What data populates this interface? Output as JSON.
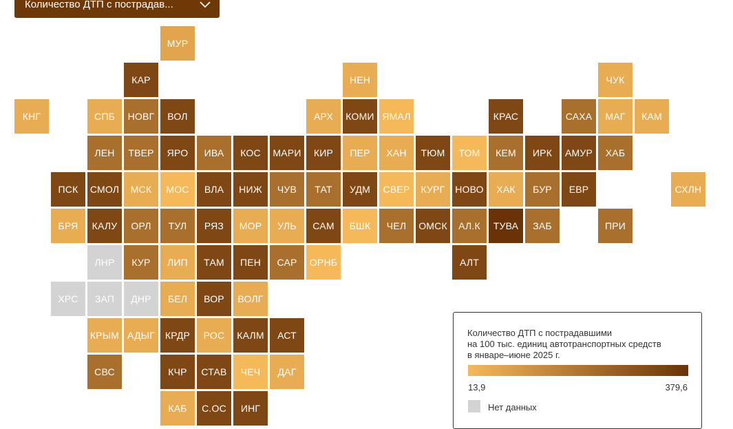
{
  "selector": {
    "value": "Количество ДТП с пострадав..."
  },
  "legend": {
    "title_1": "Количество ДТП с пострадавшими",
    "title_2": "на 100 тыс. единиц автотранспортных средств",
    "title_3": "в январе–июне 2025 г.",
    "min": "13,9",
    "max": "379,6",
    "no_data": "Нет данных",
    "color_low": "#f6b95a",
    "color_high": "#6a3306",
    "color_no_data": "#d3d3d3"
  },
  "regions": [
    {
      "label": "МУР",
      "col": 4,
      "row": 0,
      "level": 0.15
    },
    {
      "label": "КАР",
      "col": 3,
      "row": 1,
      "level": 0.85
    },
    {
      "label": "НЕН",
      "col": 9,
      "row": 1,
      "level": 0.1
    },
    {
      "label": "ЧУК",
      "col": 16,
      "row": 1,
      "level": 0.1
    },
    {
      "label": "КНГ",
      "col": 0,
      "row": 2,
      "level": 0.1
    },
    {
      "label": "СПБ",
      "col": 2,
      "row": 2,
      "level": 0.1
    },
    {
      "label": "НОВГ",
      "col": 3,
      "row": 2,
      "level": 0.55
    },
    {
      "label": "ВОЛ",
      "col": 4,
      "row": 2,
      "level": 0.85
    },
    {
      "label": "АРХ",
      "col": 8,
      "row": 2,
      "level": 0.1
    },
    {
      "label": "КОМИ",
      "col": 9,
      "row": 2,
      "level": 0.85
    },
    {
      "label": "ЯМАЛ",
      "col": 10,
      "row": 2,
      "level": 0.0
    },
    {
      "label": "КРАС",
      "col": 13,
      "row": 2,
      "level": 0.85
    },
    {
      "label": "САХА",
      "col": 15,
      "row": 2,
      "level": 0.55
    },
    {
      "label": "МАГ",
      "col": 16,
      "row": 2,
      "level": 0.1
    },
    {
      "label": "КАМ",
      "col": 17,
      "row": 2,
      "level": 0.1
    },
    {
      "label": "ЛЕН",
      "col": 2,
      "row": 3,
      "level": 0.55
    },
    {
      "label": "ТВЕР",
      "col": 3,
      "row": 3,
      "level": 0.55
    },
    {
      "label": "ЯРО",
      "col": 4,
      "row": 3,
      "level": 0.85
    },
    {
      "label": "ИВА",
      "col": 5,
      "row": 3,
      "level": 0.55
    },
    {
      "label": "КОС",
      "col": 6,
      "row": 3,
      "level": 0.85
    },
    {
      "label": "МАРИ",
      "col": 7,
      "row": 3,
      "level": 0.85
    },
    {
      "label": "КИР",
      "col": 8,
      "row": 3,
      "level": 0.85
    },
    {
      "label": "ПЕР",
      "col": 9,
      "row": 3,
      "level": 0.1
    },
    {
      "label": "ХАН",
      "col": 10,
      "row": 3,
      "level": 0.1
    },
    {
      "label": "ТЮМ",
      "col": 11,
      "row": 3,
      "level": 0.85
    },
    {
      "label": "ТОМ",
      "col": 12,
      "row": 3,
      "level": 0.0
    },
    {
      "label": "КЕМ",
      "col": 13,
      "row": 3,
      "level": 0.55
    },
    {
      "label": "ИРК",
      "col": 14,
      "row": 3,
      "level": 0.85
    },
    {
      "label": "АМУР",
      "col": 15,
      "row": 3,
      "level": 0.85
    },
    {
      "label": "ХАБ",
      "col": 16,
      "row": 3,
      "level": 0.55
    },
    {
      "label": "ПСК",
      "col": 1,
      "row": 4,
      "level": 0.85
    },
    {
      "label": "СМОЛ",
      "col": 2,
      "row": 4,
      "level": 0.85
    },
    {
      "label": "МСК",
      "col": 3,
      "row": 4,
      "level": 0.1
    },
    {
      "label": "МОС",
      "col": 4,
      "row": 4,
      "level": 0.0
    },
    {
      "label": "ВЛА",
      "col": 5,
      "row": 4,
      "level": 0.85
    },
    {
      "label": "НИЖ",
      "col": 6,
      "row": 4,
      "level": 0.85
    },
    {
      "label": "ЧУВ",
      "col": 7,
      "row": 4,
      "level": 0.55
    },
    {
      "label": "ТАТ",
      "col": 8,
      "row": 4,
      "level": 0.55
    },
    {
      "label": "УДМ",
      "col": 9,
      "row": 4,
      "level": 0.85
    },
    {
      "label": "СВЕР",
      "col": 10,
      "row": 4,
      "level": 0.0
    },
    {
      "label": "КУРГ",
      "col": 11,
      "row": 4,
      "level": 0.1
    },
    {
      "label": "НОВО",
      "col": 12,
      "row": 4,
      "level": 0.85
    },
    {
      "label": "ХАК",
      "col": 13,
      "row": 4,
      "level": 0.1
    },
    {
      "label": "БУР",
      "col": 14,
      "row": 4,
      "level": 0.55
    },
    {
      "label": "ЕВР",
      "col": 15,
      "row": 4,
      "level": 0.85
    },
    {
      "label": "СХЛН",
      "col": 18,
      "row": 4,
      "level": 0.1
    },
    {
      "label": "БРЯ",
      "col": 1,
      "row": 5,
      "level": 0.1
    },
    {
      "label": "КАЛУ",
      "col": 2,
      "row": 5,
      "level": 0.85
    },
    {
      "label": "ОРЛ",
      "col": 3,
      "row": 5,
      "level": 0.55
    },
    {
      "label": "ТУЛ",
      "col": 4,
      "row": 5,
      "level": 0.55
    },
    {
      "label": "РЯЗ",
      "col": 5,
      "row": 5,
      "level": 0.85
    },
    {
      "label": "МОР",
      "col": 6,
      "row": 5,
      "level": 0.1
    },
    {
      "label": "УЛЬ",
      "col": 7,
      "row": 5,
      "level": 0.1
    },
    {
      "label": "САМ",
      "col": 8,
      "row": 5,
      "level": 0.85
    },
    {
      "label": "БШК",
      "col": 9,
      "row": 5,
      "level": 0.0
    },
    {
      "label": "ЧЕЛ",
      "col": 10,
      "row": 5,
      "level": 0.55
    },
    {
      "label": "ОМСК",
      "col": 11,
      "row": 5,
      "level": 0.85
    },
    {
      "label": "АЛ.К",
      "col": 12,
      "row": 5,
      "level": 0.55
    },
    {
      "label": "ТУВА",
      "col": 13,
      "row": 5,
      "level": 1.0
    },
    {
      "label": "ЗАБ",
      "col": 14,
      "row": 5,
      "level": 0.55
    },
    {
      "label": "ПРИ",
      "col": 16,
      "row": 5,
      "level": 0.55
    },
    {
      "label": "ЛНР",
      "col": 2,
      "row": 6,
      "level": null
    },
    {
      "label": "КУР",
      "col": 3,
      "row": 6,
      "level": 0.55
    },
    {
      "label": "ЛИП",
      "col": 4,
      "row": 6,
      "level": 0.1
    },
    {
      "label": "ТАМ",
      "col": 5,
      "row": 6,
      "level": 0.85
    },
    {
      "label": "ПЕН",
      "col": 6,
      "row": 6,
      "level": 0.85
    },
    {
      "label": "САР",
      "col": 7,
      "row": 6,
      "level": 0.55
    },
    {
      "label": "ОРНБ",
      "col": 8,
      "row": 6,
      "level": 0.0
    },
    {
      "label": "АЛТ",
      "col": 12,
      "row": 6,
      "level": 0.85
    },
    {
      "label": "ХРС",
      "col": 1,
      "row": 7,
      "level": null
    },
    {
      "label": "ЗАП",
      "col": 2,
      "row": 7,
      "level": null
    },
    {
      "label": "ДНР",
      "col": 3,
      "row": 7,
      "level": null
    },
    {
      "label": "БЕЛ",
      "col": 4,
      "row": 7,
      "level": 0.1
    },
    {
      "label": "ВОР",
      "col": 5,
      "row": 7,
      "level": 0.85
    },
    {
      "label": "ВОЛГ",
      "col": 6,
      "row": 7,
      "level": 0.1
    },
    {
      "label": "КРЫМ",
      "col": 2,
      "row": 8,
      "level": 0.1
    },
    {
      "label": "АДЫГ",
      "col": 3,
      "row": 8,
      "level": 0.1
    },
    {
      "label": "КРДР",
      "col": 4,
      "row": 8,
      "level": 0.85
    },
    {
      "label": "РОС",
      "col": 5,
      "row": 8,
      "level": 0.1
    },
    {
      "label": "КАЛМ",
      "col": 6,
      "row": 8,
      "level": 0.85
    },
    {
      "label": "АСТ",
      "col": 7,
      "row": 8,
      "level": 0.85
    },
    {
      "label": "СВС",
      "col": 2,
      "row": 9,
      "level": 0.55
    },
    {
      "label": "КЧР",
      "col": 4,
      "row": 9,
      "level": 0.85
    },
    {
      "label": "СТАВ",
      "col": 5,
      "row": 9,
      "level": 0.85
    },
    {
      "label": "ЧЕЧ",
      "col": 6,
      "row": 9,
      "level": 0.0
    },
    {
      "label": "ДАГ",
      "col": 7,
      "row": 9,
      "level": 0.1
    },
    {
      "label": "КАБ",
      "col": 4,
      "row": 10,
      "level": 0.1
    },
    {
      "label": "С.ОС",
      "col": 5,
      "row": 10,
      "level": 0.85
    },
    {
      "label": "ИНГ",
      "col": 6,
      "row": 10,
      "level": 0.85
    }
  ]
}
